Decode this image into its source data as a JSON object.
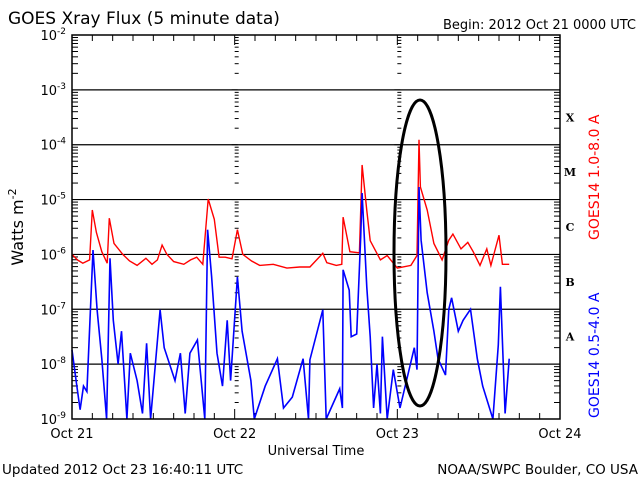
{
  "chart_data": {
    "type": "line",
    "title": "GOES Xray Flux (5 minute data)",
    "begin_label": "Begin:  2012 Oct 21 0000 UTC",
    "xlabel": "Universal Time",
    "ylabel": "Watts m",
    "ylabel_exponent": "-2",
    "x_unit": "hours since 2012 Oct 21 00:00 UTC",
    "xlim": [
      0,
      72
    ],
    "x_ticks": [
      {
        "hour": 0,
        "label": "Oct 21"
      },
      {
        "hour": 24,
        "label": "Oct 22"
      },
      {
        "hour": 48,
        "label": "Oct 23"
      },
      {
        "hour": 72,
        "label": "Oct 24"
      }
    ],
    "yscale": "log",
    "ylim_log10": [
      -9,
      -2
    ],
    "y_ticks": [
      {
        "exp": -2,
        "base": "10",
        "sup": "-2"
      },
      {
        "exp": -3,
        "base": "10",
        "sup": "-3"
      },
      {
        "exp": -4,
        "base": "10",
        "sup": "-4"
      },
      {
        "exp": -5,
        "base": "10",
        "sup": "-5"
      },
      {
        "exp": -6,
        "base": "10",
        "sup": "-6"
      },
      {
        "exp": -7,
        "base": "10",
        "sup": "-7"
      },
      {
        "exp": -8,
        "base": "10",
        "sup": "-8"
      },
      {
        "exp": -9,
        "base": "10",
        "sup": "-9"
      }
    ],
    "flare_classes": [
      {
        "label": "X",
        "exp": -3.5
      },
      {
        "label": "M",
        "exp": -4.5
      },
      {
        "label": "C",
        "exp": -5.5
      },
      {
        "label": "B",
        "exp": -6.5
      },
      {
        "label": "A",
        "exp": -7.5
      }
    ],
    "grid": "horizontal lines at decades 1e-3 .. 1e-8",
    "series": [
      {
        "name": "GOES14 1.0-8.0 A",
        "color": "#ff0000",
        "points_log10": [
          [
            0,
            -6.0
          ],
          [
            0.8,
            -6.1
          ],
          [
            1.6,
            -6.16
          ],
          [
            2.6,
            -6.1
          ],
          [
            3.0,
            -5.19
          ],
          [
            3.6,
            -5.6
          ],
          [
            4.4,
            -5.95
          ],
          [
            5.2,
            -6.16
          ],
          [
            5.5,
            -5.34
          ],
          [
            6.2,
            -5.8
          ],
          [
            7.5,
            -6.0
          ],
          [
            8.5,
            -6.12
          ],
          [
            9.6,
            -6.2
          ],
          [
            10.9,
            -6.07
          ],
          [
            11.8,
            -6.18
          ],
          [
            12.6,
            -6.1
          ],
          [
            13.3,
            -5.83
          ],
          [
            14.0,
            -6.0
          ],
          [
            15.0,
            -6.13
          ],
          [
            16.5,
            -6.18
          ],
          [
            17.5,
            -6.1
          ],
          [
            18.4,
            -6.05
          ],
          [
            19.3,
            -6.18
          ],
          [
            20.1,
            -4.99
          ],
          [
            21.0,
            -5.36
          ],
          [
            21.7,
            -6.05
          ],
          [
            22.6,
            -6.05
          ],
          [
            23.6,
            -6.08
          ],
          [
            24.4,
            -5.55
          ],
          [
            25.2,
            -6.0
          ],
          [
            26.5,
            -6.12
          ],
          [
            27.7,
            -6.2
          ],
          [
            29.7,
            -6.18
          ],
          [
            31.7,
            -6.25
          ],
          [
            33.6,
            -6.23
          ],
          [
            35.1,
            -6.23
          ],
          [
            37.0,
            -5.98
          ],
          [
            37.6,
            -6.15
          ],
          [
            39.0,
            -6.2
          ],
          [
            39.8,
            -6.18
          ],
          [
            40.0,
            -5.32
          ],
          [
            41.0,
            -5.95
          ],
          [
            42.4,
            -5.97
          ],
          [
            42.8,
            -4.37
          ],
          [
            43.5,
            -5.2
          ],
          [
            44.0,
            -5.75
          ],
          [
            45.5,
            -6.1
          ],
          [
            46.5,
            -6.02
          ],
          [
            48.0,
            -6.25
          ],
          [
            50.0,
            -6.2
          ],
          [
            50.9,
            -6.02
          ],
          [
            51.2,
            -3.91
          ],
          [
            51.4,
            -4.77
          ],
          [
            52.4,
            -5.19
          ],
          [
            53.4,
            -5.8
          ],
          [
            54.6,
            -6.1
          ],
          [
            55.6,
            -5.74
          ],
          [
            56.2,
            -5.63
          ],
          [
            57.4,
            -5.9
          ],
          [
            58.4,
            -5.78
          ],
          [
            59.2,
            -5.95
          ],
          [
            60.2,
            -6.2
          ],
          [
            61.2,
            -5.9
          ],
          [
            61.8,
            -6.2
          ],
          [
            63.0,
            -5.65
          ],
          [
            63.5,
            -6.18
          ],
          [
            64.5,
            -6.18
          ]
        ]
      },
      {
        "name": "GOES14 0.5-4.0 A",
        "color": "#0000ff",
        "points_log10": [
          [
            0,
            -7.74
          ],
          [
            0.6,
            -8.3
          ],
          [
            1.2,
            -8.83
          ],
          [
            1.7,
            -8.4
          ],
          [
            2.2,
            -8.5
          ],
          [
            3.1,
            -5.92
          ],
          [
            3.7,
            -7.01
          ],
          [
            4.4,
            -7.9
          ],
          [
            5.1,
            -9.0
          ],
          [
            5.6,
            -6.07
          ],
          [
            6.1,
            -7.2
          ],
          [
            6.8,
            -8.0
          ],
          [
            7.3,
            -7.4
          ],
          [
            8.1,
            -9.0
          ],
          [
            8.6,
            -7.8
          ],
          [
            9.6,
            -8.3
          ],
          [
            10.4,
            -8.9
          ],
          [
            11.0,
            -7.62
          ],
          [
            11.6,
            -9.0
          ],
          [
            13.0,
            -7.01
          ],
          [
            13.6,
            -7.7
          ],
          [
            15.2,
            -8.3
          ],
          [
            16.0,
            -7.8
          ],
          [
            16.7,
            -8.9
          ],
          [
            17.4,
            -7.8
          ],
          [
            18.5,
            -7.56
          ],
          [
            19.6,
            -9.0
          ],
          [
            20.0,
            -5.55
          ],
          [
            20.6,
            -6.4
          ],
          [
            21.4,
            -7.8
          ],
          [
            22.2,
            -8.4
          ],
          [
            22.9,
            -7.2
          ],
          [
            23.4,
            -8.3
          ],
          [
            24.4,
            -6.41
          ],
          [
            25.1,
            -7.4
          ],
          [
            26.4,
            -8.3
          ],
          [
            26.9,
            -9.0
          ],
          [
            28.5,
            -8.4
          ],
          [
            30.3,
            -7.9
          ],
          [
            31.2,
            -8.8
          ],
          [
            32.5,
            -8.6
          ],
          [
            34.1,
            -7.9
          ],
          [
            34.9,
            -9.0
          ],
          [
            35.1,
            -7.92
          ],
          [
            37.0,
            -7.01
          ],
          [
            37.5,
            -9.0
          ],
          [
            39.5,
            -8.45
          ],
          [
            39.9,
            -8.8
          ],
          [
            40.0,
            -6.28
          ],
          [
            40.9,
            -6.65
          ],
          [
            41.2,
            -7.5
          ],
          [
            42.0,
            -7.45
          ],
          [
            42.6,
            -5.68
          ],
          [
            42.8,
            -4.88
          ],
          [
            43.5,
            -6.6
          ],
          [
            44.0,
            -7.5
          ],
          [
            44.5,
            -8.8
          ],
          [
            45.0,
            -8.0
          ],
          [
            45.5,
            -8.9
          ],
          [
            45.8,
            -7.5
          ],
          [
            46.5,
            -9.0
          ],
          [
            47.4,
            -8.1
          ],
          [
            48.4,
            -8.8
          ],
          [
            50.5,
            -7.7
          ],
          [
            50.9,
            -8.1
          ],
          [
            51.2,
            -4.77
          ],
          [
            51.5,
            -5.74
          ],
          [
            52.4,
            -6.7
          ],
          [
            53.4,
            -7.4
          ],
          [
            54.0,
            -7.9
          ],
          [
            55.1,
            -8.2
          ],
          [
            55.6,
            -7.0
          ],
          [
            56.0,
            -6.79
          ],
          [
            57.0,
            -7.4
          ],
          [
            57.7,
            -7.2
          ],
          [
            58.8,
            -7.0
          ],
          [
            59.8,
            -7.9
          ],
          [
            60.6,
            -8.4
          ],
          [
            62.1,
            -9.0
          ],
          [
            62.9,
            -7.65
          ],
          [
            63.2,
            -6.59
          ],
          [
            63.9,
            -8.9
          ],
          [
            64.5,
            -7.9
          ]
        ]
      }
    ],
    "annotation": "ellipse highlighting Oct 23 ~03:00 X-class flare"
  },
  "footer": {
    "updated": "Updated 2012 Oct 23 16:40:11 UTC",
    "credit": "NOAA/SWPC Boulder, CO USA"
  }
}
